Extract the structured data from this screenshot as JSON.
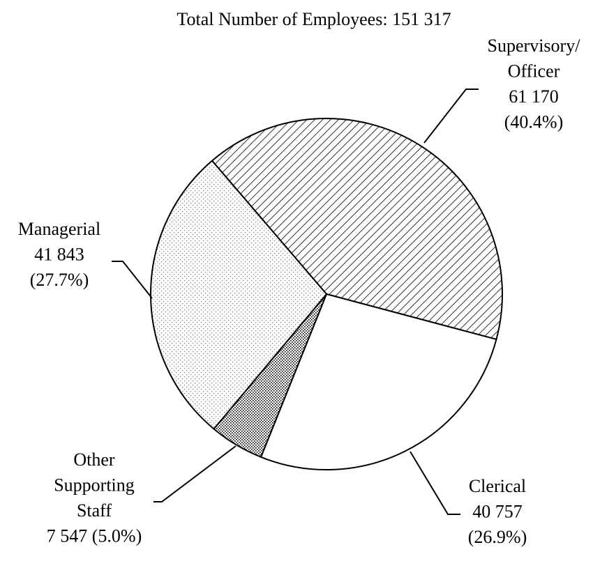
{
  "chart_data": {
    "type": "pie",
    "title": "Total Number of Employees: 151 317",
    "categories": [
      [
        "Supervisory/",
        "Officer"
      ],
      [
        "Clerical"
      ],
      [
        "Other",
        "Supporting",
        "Staff"
      ],
      [
        "Managerial"
      ]
    ],
    "values": [
      61170,
      40757,
      7547,
      41843
    ],
    "value_labels": [
      "61 170",
      "40 757",
      "7 547",
      "41 843"
    ],
    "percents": [
      40.4,
      26.9,
      5.0,
      27.7
    ],
    "percent_labels": [
      "(40.4%)",
      "(26.9%)",
      "(5.0%)",
      "(27.7%)"
    ]
  }
}
